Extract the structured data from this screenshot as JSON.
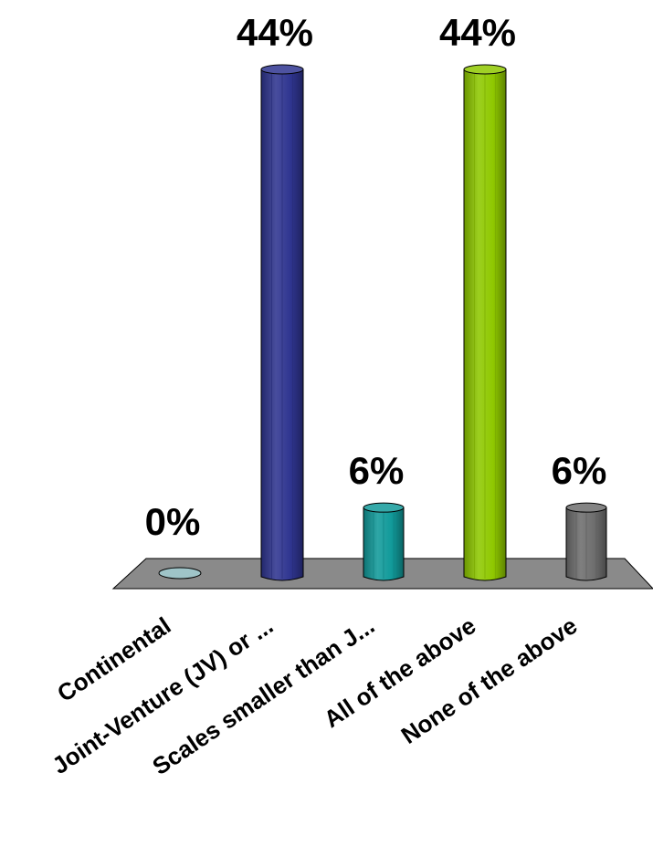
{
  "chart_data": {
    "type": "bar",
    "title": "",
    "xlabel": "",
    "ylabel": "",
    "ylim": [
      0,
      44
    ],
    "categories": [
      "Continental",
      "Joint-Venture (JV) or ...",
      "Scales smaller than J...",
      "All of the above",
      "None of the above"
    ],
    "values": [
      0,
      44,
      6,
      44,
      6
    ],
    "value_labels": [
      "0%",
      "44%",
      "6%",
      "44%",
      "6%"
    ],
    "colors": [
      "#9fc4c8",
      "#2f3590",
      "#119a9a",
      "#8fc800",
      "#6e6e6e"
    ],
    "floor_color": "#8a8a8a",
    "grid": false,
    "legend": "none"
  }
}
